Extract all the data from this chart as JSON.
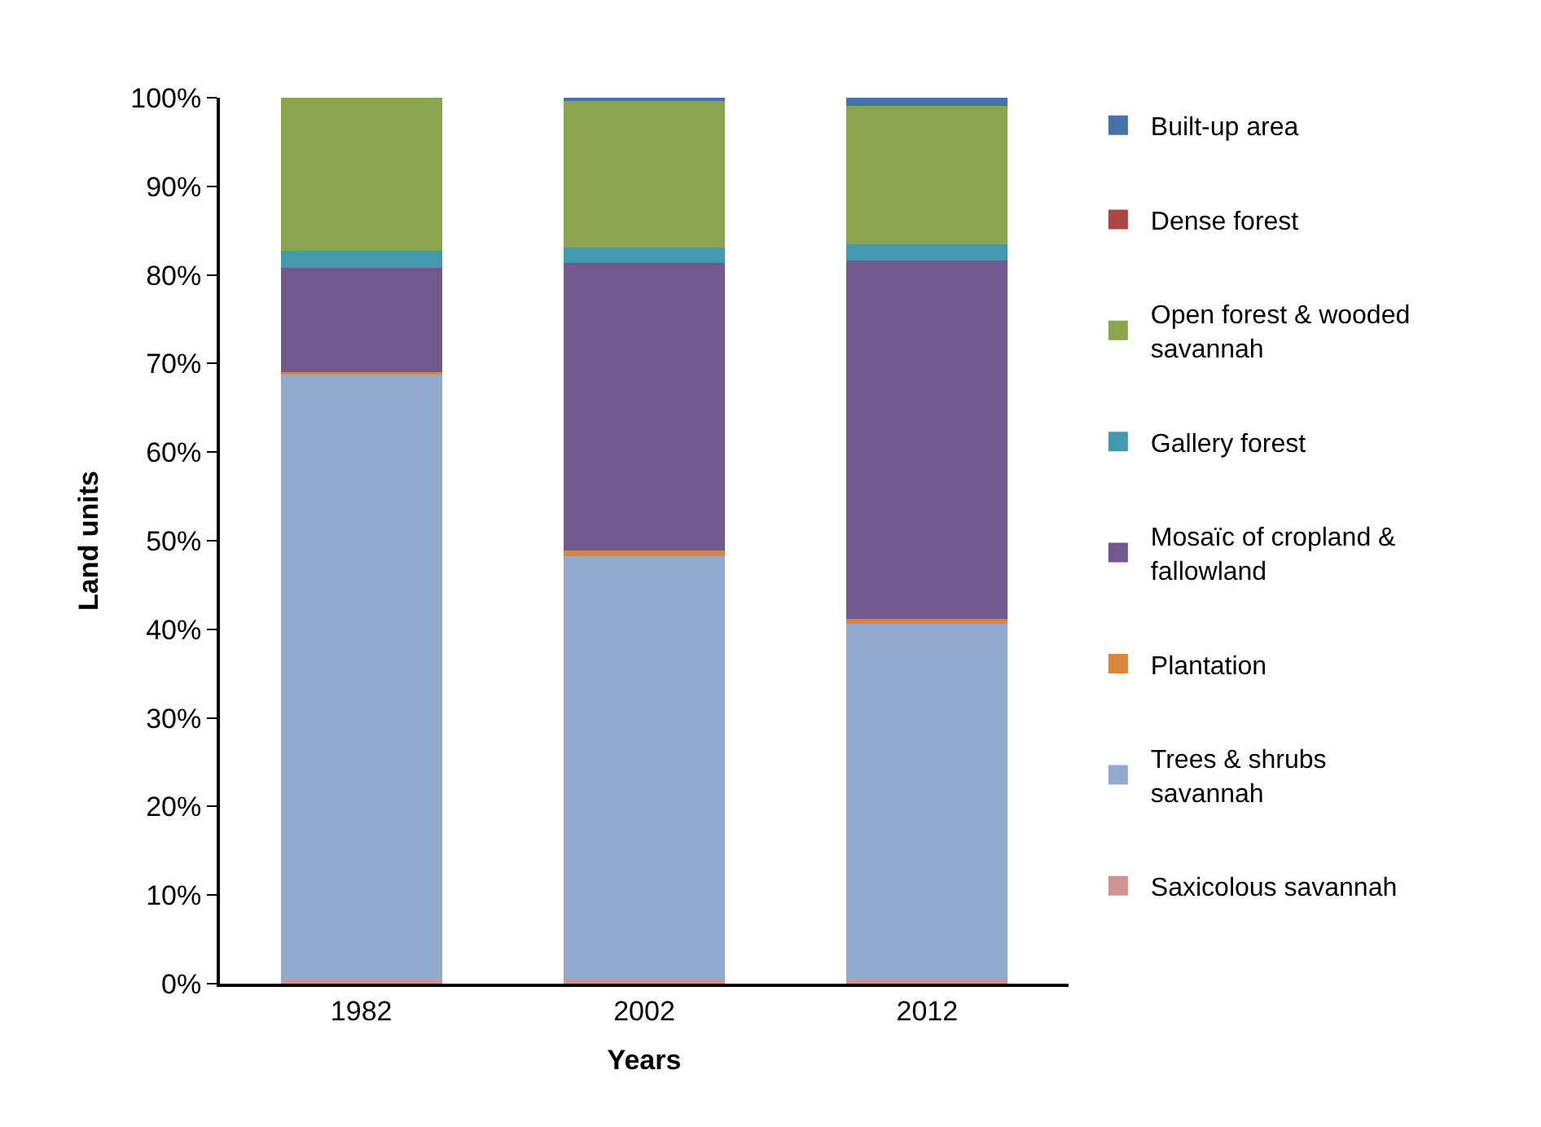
{
  "chart_data": {
    "type": "bar",
    "stacked": true,
    "xlabel": "Years",
    "ylabel": "Land units",
    "categories": [
      "1982",
      "2002",
      "2012"
    ],
    "series": [
      {
        "name": "Saxicolous savannah",
        "color": "#d19392",
        "values": [
          0.5,
          0.5,
          0.5
        ]
      },
      {
        "name": "Trees & shrubs savannah",
        "color": "#93a9cf",
        "values": [
          68.4,
          47.8,
          40.1
        ]
      },
      {
        "name": "Plantation",
        "color": "#db843d",
        "values": [
          0.1,
          0.6,
          0.6
        ]
      },
      {
        "name": "Mosaïc of cropland & fallowland",
        "color": "#71588f",
        "values": [
          11.8,
          32.4,
          40.4
        ]
      },
      {
        "name": "Gallery forest",
        "color": "#4198af",
        "values": [
          1.9,
          1.8,
          1.9
        ]
      },
      {
        "name": "Open forest & wooded savannah",
        "color": "#89a54e",
        "values": [
          17.3,
          16.7,
          15.6
        ]
      },
      {
        "name": "Dense forest",
        "color": "#aa4643",
        "values": [
          0,
          0,
          0
        ]
      },
      {
        "name": "Built-up area",
        "color": "#4572a7",
        "values": [
          0,
          0.2,
          0.9
        ]
      }
    ],
    "ylim": [
      0,
      100
    ],
    "yticks": [
      {
        "value": 0,
        "label": "0%"
      },
      {
        "value": 10,
        "label": "10%"
      },
      {
        "value": 20,
        "label": "20%"
      },
      {
        "value": 30,
        "label": "30%"
      },
      {
        "value": 40,
        "label": "40%"
      },
      {
        "value": 50,
        "label": "50%"
      },
      {
        "value": 60,
        "label": "60%"
      },
      {
        "value": 70,
        "label": "70%"
      },
      {
        "value": 80,
        "label": "80%"
      },
      {
        "value": 90,
        "label": "90%"
      },
      {
        "value": 100,
        "label": "100%"
      }
    ],
    "legend": "right"
  }
}
